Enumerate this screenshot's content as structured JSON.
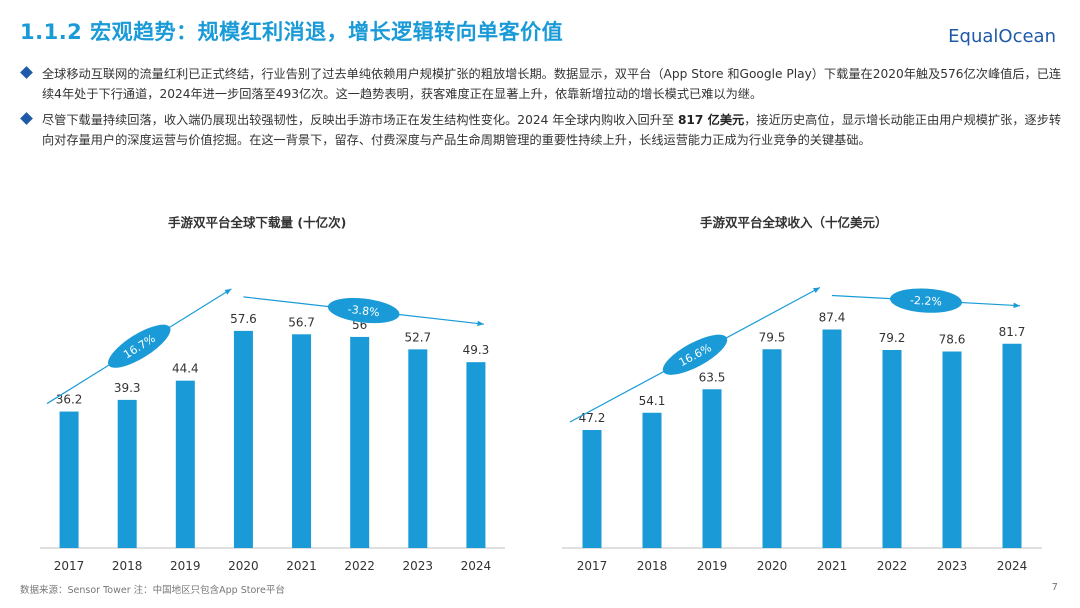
{
  "header": {
    "title": "1.1.2 宏观趋势：规模红利消退，增长逻辑转向单客价值",
    "logo": "EqualOcean"
  },
  "bullets": [
    {
      "text": "全球移动互联网的流量红利已正式终结，行业告别了过去单纯依赖用户规模扩张的粗放增长期。数据显示，双平台（App Store 和Google Play）下载量在2020年触及576亿次峰值后，已连续4年处于下行通道，2024年进一步回落至493亿次。这一趋势表明，获客难度正在显著上升，依靠新增拉动的增长模式已难以为继。"
    },
    {
      "pre": "尽管下载量持续回落，收入端仍展现出较强韧性，反映出手游市场正在发生结构性变化。2024 年全球内购收入回升至 ",
      "bold": "817 亿美元",
      "post": "，接近历史高位，显示增长动能正由用户规模扩张，逐步转向对存量用户的深度运营与价值挖掘。在这一背景下，留存、付费深度与产品生命周期管理的重要性持续上升，长线运营能力正成为行业竞争的关键基础。"
    }
  ],
  "chart_data": [
    {
      "type": "bar",
      "title": "手游双平台全球下载量 (十亿次)",
      "categories": [
        "2017",
        "2018",
        "2019",
        "2020",
        "2021",
        "2022",
        "2023",
        "2024"
      ],
      "values": [
        36.2,
        39.3,
        44.4,
        57.6,
        56.7,
        56,
        52.7,
        49.3
      ],
      "ylim": [
        0,
        65
      ],
      "annotations": [
        {
          "label": "16.7%",
          "from": "2017",
          "to": "2020"
        },
        {
          "label": "-3.8%",
          "from": "2020",
          "to": "2024"
        }
      ],
      "bar_color": "#1a9bd7"
    },
    {
      "type": "bar",
      "title": "手游双平台全球收入（十亿美元）",
      "categories": [
        "2017",
        "2018",
        "2019",
        "2020",
        "2021",
        "2022",
        "2023",
        "2024"
      ],
      "values": [
        47.2,
        54.1,
        63.5,
        79.5,
        87.4,
        79.2,
        78.6,
        81.7
      ],
      "ylim": [
        0,
        98
      ],
      "annotations": [
        {
          "label": "16.6%",
          "from": "2017",
          "to": "2021"
        },
        {
          "label": "-2.2%",
          "from": "2021",
          "to": "2024"
        }
      ],
      "bar_color": "#1a9bd7"
    }
  ],
  "footer": {
    "source": "数据来源：Sensor Tower 注：中国地区只包含App Store平台",
    "page": "7"
  }
}
